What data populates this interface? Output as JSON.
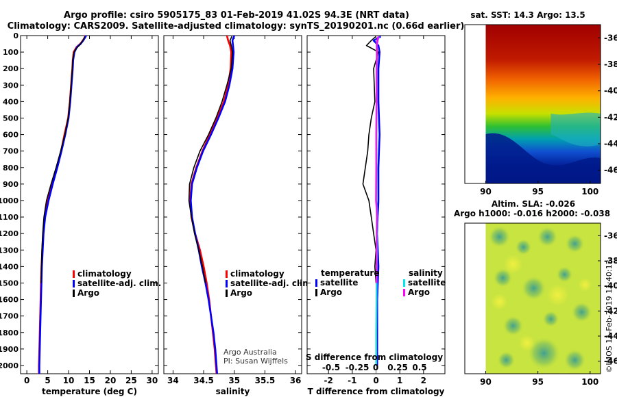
{
  "header": {
    "line1": "Argo profile: csiro 5905175_83 01-Feb-2019 41.02S 94.3E (NRT data)",
    "line2": "Climatology: CARS2009. Satellite-adjusted climatology: synTS_20190201.nc (0.66d earlier)"
  },
  "colors": {
    "climatology": "#ff0000",
    "satellite": "#0000ff",
    "argo": "#000000",
    "sat_salinity": "#00e5ee",
    "clim_salinity": "#ff00ff"
  },
  "depth_axis": {
    "range": [
      0,
      2050
    ],
    "ticks": [
      0,
      100,
      200,
      300,
      400,
      500,
      600,
      700,
      800,
      900,
      1000,
      1100,
      1200,
      1300,
      1400,
      1500,
      1600,
      1700,
      1800,
      1900,
      2000
    ]
  },
  "chart_data": [
    {
      "type": "line",
      "id": "temperature",
      "xlabel": "temperature (deg C)",
      "xlim": [
        -1.5,
        31.5
      ],
      "xticks": [
        0,
        5,
        10,
        15,
        20,
        25,
        30
      ],
      "ylim": [
        0,
        2050
      ],
      "legend": {
        "placement": "lower-middle",
        "entries": [
          "climatology",
          "satellite-adj. clim.",
          "Argo"
        ]
      },
      "series": [
        {
          "name": "climatology",
          "color_key": "climatology",
          "depth": [
            0,
            10,
            30,
            50,
            70,
            100,
            150,
            200,
            300,
            400,
            500,
            600,
            700,
            800,
            900,
            1000,
            1100,
            1200,
            1300,
            1400,
            1500,
            1600,
            1700,
            1800,
            1900,
            2000,
            2050
          ],
          "values": [
            14.0,
            13.9,
            13.4,
            12.8,
            11.9,
            11.2,
            11.0,
            10.9,
            10.6,
            10.3,
            9.9,
            9.0,
            8.2,
            7.2,
            6.1,
            5.0,
            4.3,
            3.9,
            3.7,
            3.5,
            3.4,
            3.3,
            3.2,
            3.1,
            3.0,
            2.9,
            2.9
          ]
        },
        {
          "name": "satellite-adj. clim.",
          "color_key": "satellite",
          "depth": [
            0,
            10,
            30,
            50,
            70,
            100,
            150,
            200,
            300,
            400,
            500,
            600,
            700,
            800,
            900,
            1000,
            1100,
            1200,
            1300,
            1400,
            1500,
            1600,
            1700,
            1800,
            1900,
            2000,
            2050
          ],
          "values": [
            14.2,
            14.0,
            13.5,
            12.9,
            12.0,
            11.4,
            11.1,
            11.0,
            10.7,
            10.4,
            10.0,
            9.2,
            8.3,
            7.3,
            6.2,
            5.2,
            4.4,
            4.0,
            3.8,
            3.6,
            3.5,
            3.4,
            3.3,
            3.2,
            3.1,
            3.0,
            3.0
          ]
        },
        {
          "name": "Argo",
          "color_key": "argo",
          "depth": [
            5,
            20,
            40,
            60,
            80,
            100,
            150,
            200,
            300,
            400,
            500,
            600,
            700,
            800,
            900,
            1000,
            1100,
            1200,
            1300,
            1400,
            1500
          ],
          "values": [
            13.9,
            13.6,
            13.2,
            12.5,
            11.8,
            11.3,
            11.0,
            10.9,
            10.6,
            10.3,
            9.9,
            9.1,
            8.1,
            7.0,
            5.8,
            4.7,
            4.1,
            3.8,
            3.6,
            3.5,
            3.4
          ]
        }
      ]
    },
    {
      "type": "line",
      "id": "salinity",
      "xlabel": "salinity",
      "xlim": [
        33.85,
        36.1
      ],
      "xticks": [
        34,
        34.5,
        35,
        35.5,
        36
      ],
      "xticklabels": [
        "34",
        "34.5",
        "35",
        "35.5",
        "36"
      ],
      "ylim": [
        0,
        2050
      ],
      "legend": {
        "placement": "lower-middle",
        "entries": [
          "climatology",
          "satellite-adj. clim.",
          "Argo"
        ]
      },
      "credit": [
        "Argo Australia",
        "PI: Susan Wijffels"
      ],
      "series": [
        {
          "name": "climatology",
          "color_key": "climatology",
          "depth": [
            0,
            30,
            60,
            100,
            200,
            300,
            400,
            500,
            600,
            700,
            800,
            900,
            1000,
            1100,
            1200,
            1300,
            1400,
            1500,
            1600,
            1700,
            1800,
            1900,
            2000,
            2050
          ],
          "values": [
            34.88,
            34.9,
            34.93,
            34.95,
            34.94,
            34.9,
            34.83,
            34.72,
            34.6,
            34.48,
            34.38,
            34.3,
            34.28,
            34.3,
            34.36,
            34.44,
            34.5,
            34.55,
            34.59,
            34.62,
            34.65,
            34.68,
            34.7,
            34.71
          ]
        },
        {
          "name": "satellite-adj. clim.",
          "color_key": "satellite",
          "depth": [
            0,
            30,
            60,
            100,
            200,
            300,
            400,
            500,
            600,
            700,
            800,
            900,
            1000,
            1100,
            1200,
            1300,
            1400,
            1500,
            1600,
            1700,
            1800,
            1900,
            2000,
            2050
          ],
          "values": [
            35.0,
            34.97,
            34.98,
            34.99,
            34.97,
            34.92,
            34.85,
            34.74,
            34.62,
            34.49,
            34.39,
            34.31,
            34.29,
            34.31,
            34.36,
            34.42,
            34.47,
            34.53,
            34.58,
            34.62,
            34.66,
            34.69,
            34.71,
            34.72
          ]
        },
        {
          "name": "Argo",
          "color_key": "argo",
          "depth": [
            5,
            30,
            60,
            100,
            200,
            300,
            400,
            500,
            600,
            700,
            800,
            900,
            1000,
            1100,
            1200,
            1300,
            1400,
            1500
          ],
          "values": [
            34.96,
            34.93,
            34.95,
            34.97,
            34.95,
            34.88,
            34.8,
            34.7,
            34.58,
            34.44,
            34.34,
            34.27,
            34.26,
            34.3,
            34.35,
            34.42,
            34.48,
            34.53
          ]
        }
      ]
    },
    {
      "type": "line",
      "id": "difference",
      "xlabel": "T difference from climatology",
      "xlim": [
        -2.9,
        2.9
      ],
      "xticks": [
        -2,
        -1,
        0,
        1,
        2
      ],
      "top_axis_label": "S difference from climatology",
      "top_ticks": [
        "-0.5",
        "-0.25",
        "0",
        "0.25",
        "0.5"
      ],
      "ylim": [
        0,
        2050
      ],
      "legend": {
        "placement": "lower",
        "temperature_header": "temperature",
        "salinity_header": "salinity",
        "entries": [
          "satellite",
          "Argo",
          "satellite",
          "Argo"
        ]
      },
      "series": [
        {
          "name": "T satellite",
          "color_key": "satellite",
          "depth": [
            5,
            30,
            60,
            100,
            200,
            400,
            600,
            800,
            1000,
            1200,
            1400,
            1600,
            1800,
            2000
          ],
          "values": [
            0.2,
            -0.1,
            0.1,
            0.15,
            0.1,
            0.1,
            0.15,
            0.1,
            0.1,
            0.05,
            0.1,
            0.05,
            0.05,
            0.05
          ]
        },
        {
          "name": "T Argo",
          "color_key": "argo",
          "depth": [
            5,
            30,
            60,
            100,
            200,
            400,
            500,
            600,
            700,
            800,
            900,
            1000,
            1100,
            1200,
            1300,
            1400,
            1500
          ],
          "values": [
            0.0,
            -0.2,
            -0.4,
            0.1,
            -0.1,
            -0.05,
            -0.2,
            -0.3,
            -0.35,
            -0.45,
            -0.55,
            -0.3,
            -0.2,
            -0.1,
            0.0,
            -0.05,
            0.0
          ]
        },
        {
          "name": "S satellite",
          "color_key": "sat_salinity",
          "depth": [
            5,
            30,
            60,
            100,
            200,
            400,
            600,
            800,
            1000,
            1100,
            1200,
            1400,
            1600,
            1800,
            2000
          ],
          "values": [
            0.12,
            0.07,
            0.03,
            0.04,
            0.03,
            0.02,
            0.02,
            0.02,
            0.01,
            0.07,
            0.05,
            0.03,
            0.02,
            0.01,
            0.01
          ]
        },
        {
          "name": "S Argo",
          "color_key": "clim_salinity",
          "depth": [
            5,
            30,
            60,
            100,
            200,
            400,
            600,
            800,
            1000,
            1100,
            1200,
            1400,
            1500
          ],
          "values": [
            0.1,
            0.06,
            0.03,
            0.04,
            0.02,
            0.02,
            0.01,
            0.01,
            0.0,
            0.05,
            0.03,
            0.02,
            0.02
          ]
        }
      ]
    },
    {
      "type": "heatmap",
      "id": "sst_map",
      "title": "sat. SST: 14.3 Argo: 13.5",
      "xlim": [
        88,
        101
      ],
      "ylim": [
        -47,
        -35
      ],
      "xticks": [
        90,
        95,
        100
      ],
      "yticks": [
        -36,
        -38,
        -40,
        -42,
        -44,
        -46
      ],
      "colored_lon_range": [
        90,
        101
      ],
      "sst_warm_north": 18,
      "sst_cold_south": 6
    },
    {
      "type": "heatmap",
      "id": "sla_map",
      "title_line1": "Altim. SLA: -0.026",
      "title_line2": "Argo h1000: -0.016 h2000: -0.038",
      "xlim": [
        88,
        101
      ],
      "ylim": [
        -47,
        -35
      ],
      "xticks": [
        90,
        95,
        100
      ],
      "yticks": [
        -36,
        -38,
        -40,
        -42,
        -44,
        -46
      ],
      "colored_lon_range": [
        90,
        101
      ],
      "watermark": "©IMOS 11-Feb-2019 11:40:12"
    }
  ]
}
